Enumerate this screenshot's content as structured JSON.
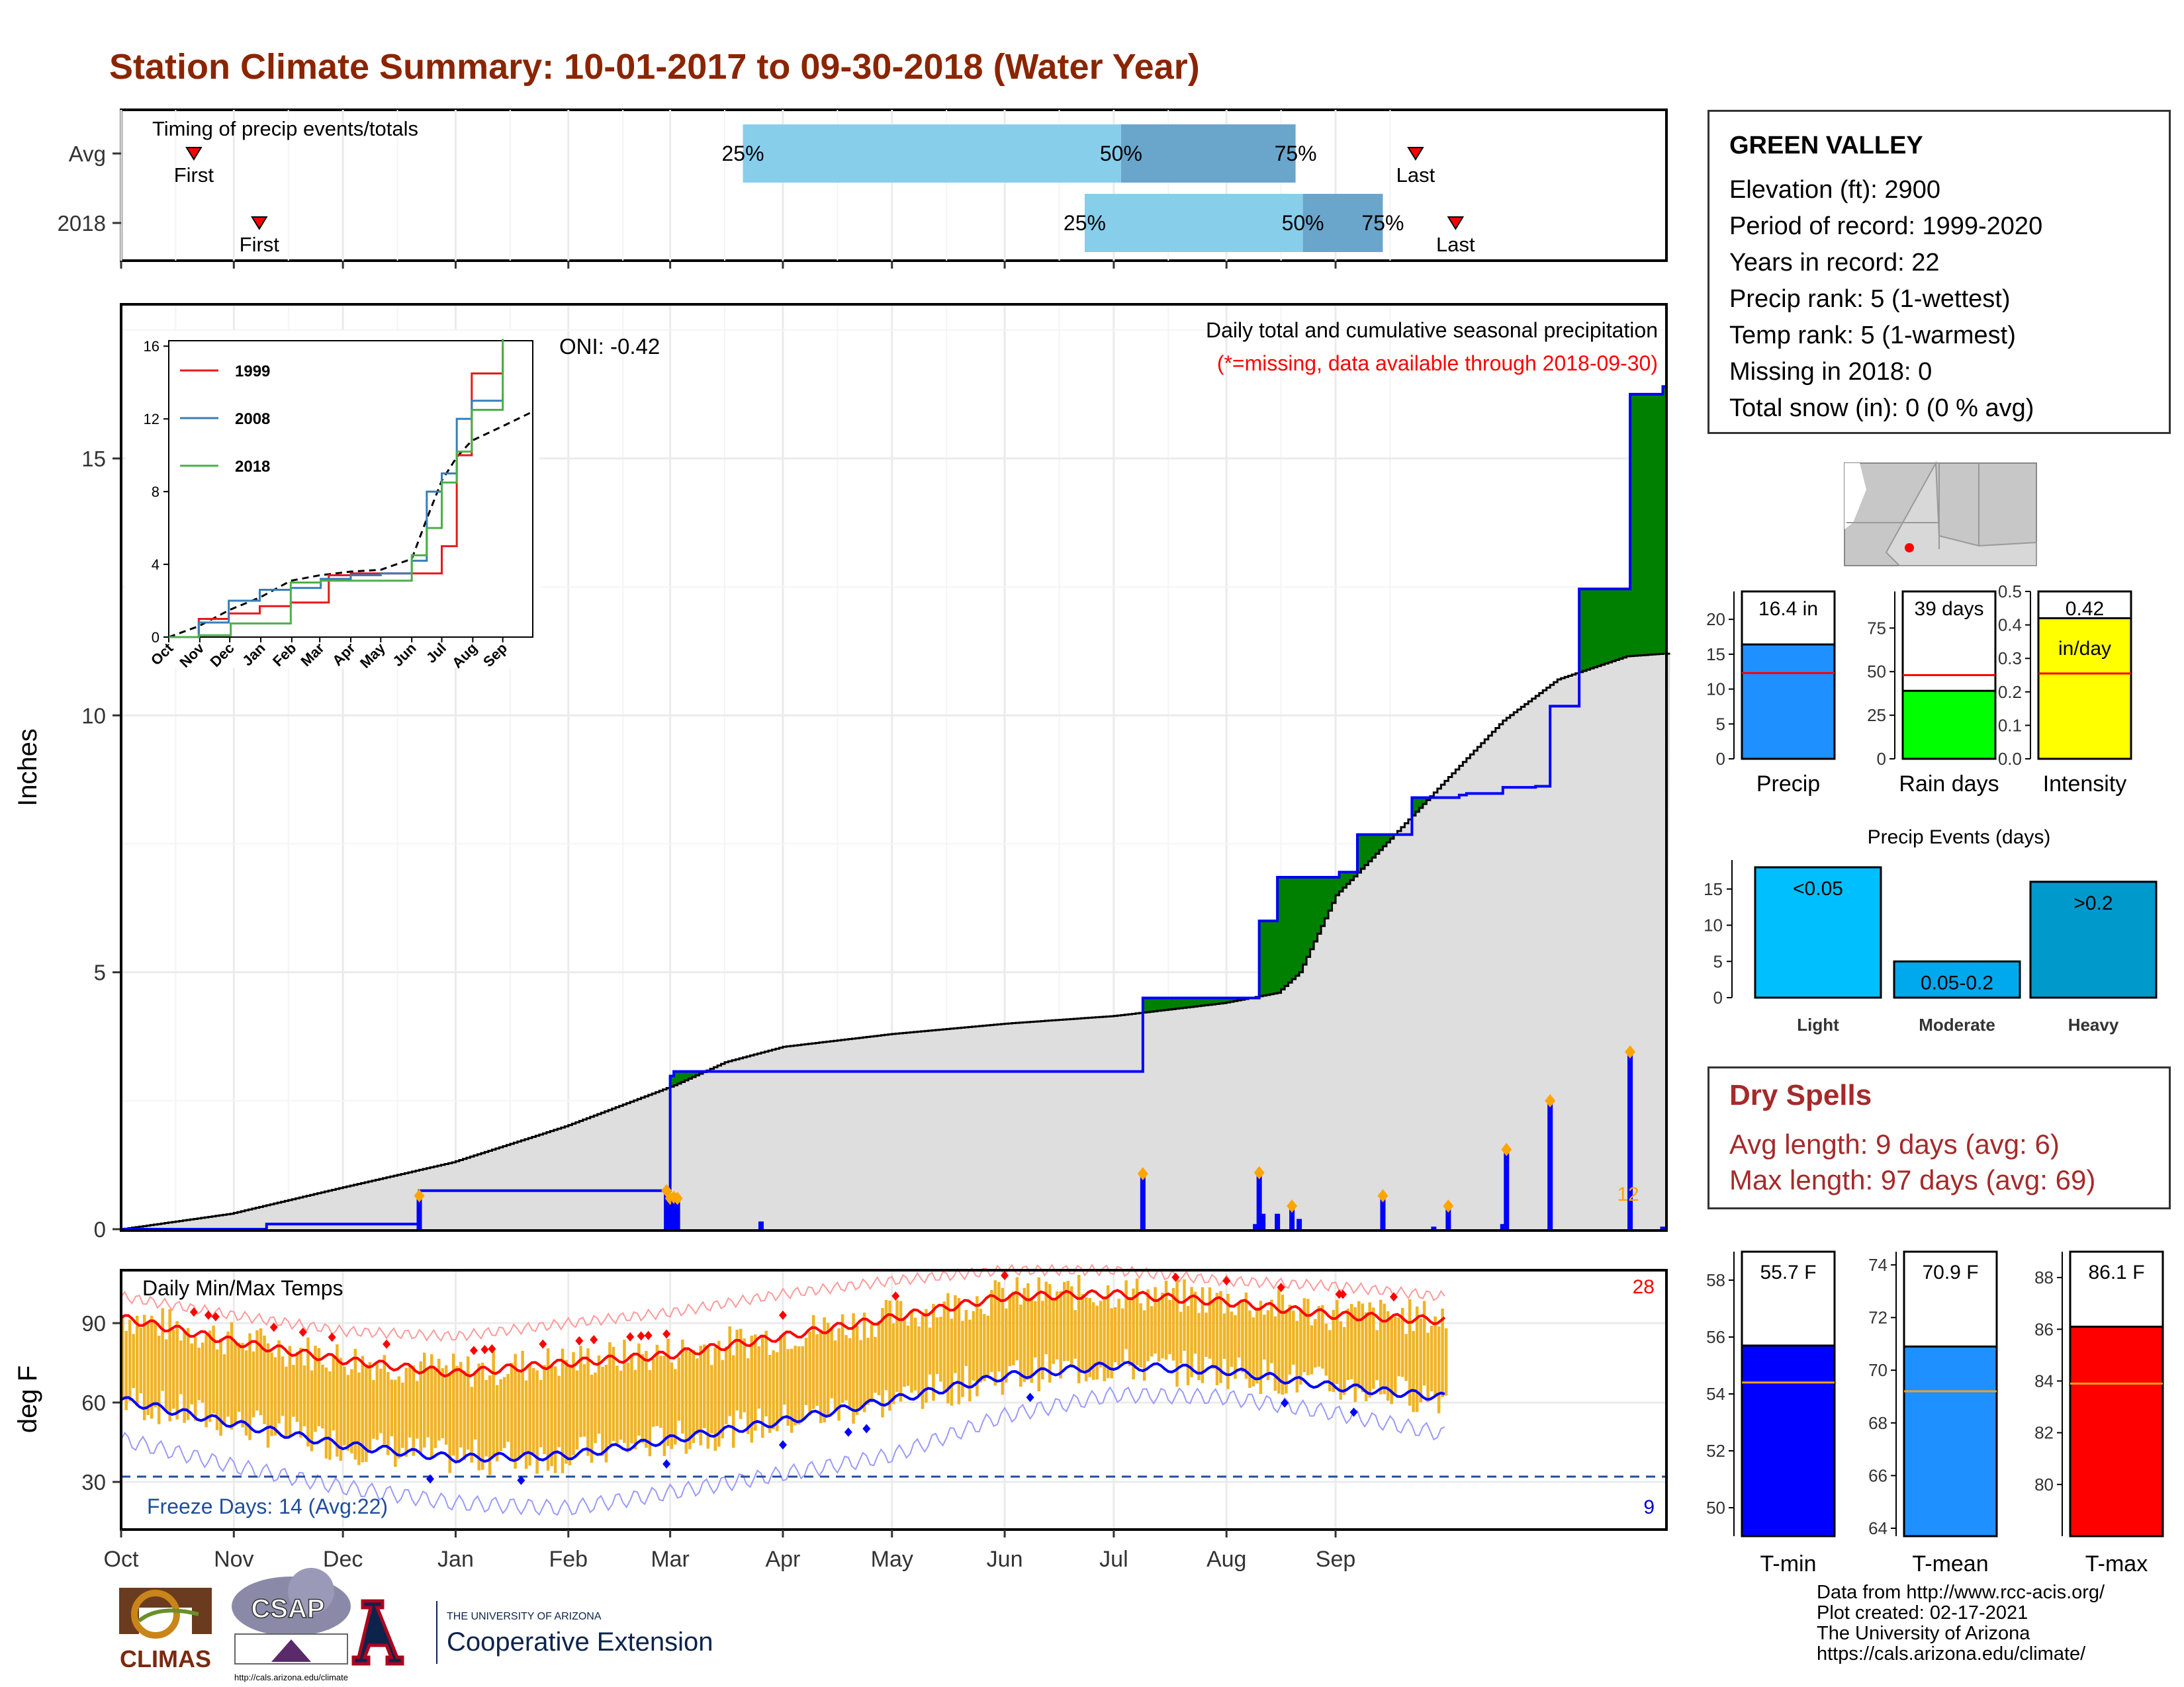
{
  "title": "Station Climate Summary: 10-01-2017 to 09-30-2018 (Water Year)",
  "months": [
    "Oct",
    "Nov",
    "Dec",
    "Jan",
    "Feb",
    "Mar",
    "Apr",
    "May",
    "Jun",
    "Jul",
    "Aug",
    "Sep"
  ],
  "timing": {
    "label": "Timing of precip events/totals",
    "rows": [
      {
        "name": "Avg",
        "first_label": "First",
        "first_day": 20,
        "last_label": "Last",
        "last_day": 356,
        "p25": 171,
        "p50": 275,
        "p75": 323,
        "p25_label": "25%",
        "p50_label": "50%",
        "p75_label": "75%"
      },
      {
        "name": "2018",
        "first_label": "First",
        "first_day": 38,
        "last_label": "Last",
        "last_day": 367,
        "p25": 265,
        "p50": 325,
        "p75": 347,
        "p25_label": "25%",
        "p50_label": "50%",
        "p75_label": "75%"
      }
    ]
  },
  "precip_panel": {
    "title": "Daily total and cumulative seasonal precipitation",
    "subtitle": "(*=missing, data available through 2018-09-30)",
    "oni": "ONI: -0.42",
    "ylabel": "Inches",
    "ylim": [
      0,
      18
    ],
    "yticks": [
      0,
      5,
      10,
      15
    ],
    "count_label": "12"
  },
  "inset": {
    "xticks": [
      "Oct",
      "Nov",
      "Dec",
      "Jan",
      "Feb",
      "Mar",
      "Apr",
      "May",
      "Jun",
      "Jul",
      "Aug",
      "Sep"
    ],
    "yticks": [
      0,
      4,
      8,
      12,
      16
    ],
    "series": [
      {
        "name": "1999",
        "color": "#e41a1c"
      },
      {
        "name": "2008",
        "color": "#377eb8"
      },
      {
        "name": "2018",
        "color": "#4daf4a"
      }
    ]
  },
  "temp_panel": {
    "title": "Daily Min/Max Temps",
    "ylabel": "deg F",
    "yticks": [
      30,
      60,
      90
    ],
    "ylim": [
      12,
      110
    ],
    "freeze_label": "Freeze Days: 14 (Avg:22)",
    "hot_count": "28",
    "cold_count": "9"
  },
  "station": {
    "name": "GREEN VALLEY",
    "rows": [
      "Elevation (ft): 2900",
      "Period of record: 1999-2020",
      "Years in record: 22",
      "Precip rank: 5 (1-wettest)",
      "Temp rank: 5 (1-warmest)",
      "Missing in 2018: 0",
      "Total snow (in): 0 (0 % avg)"
    ]
  },
  "summary_bars": [
    {
      "label": "Precip",
      "value_label": "16.4 in",
      "value": 16.4,
      "avg": 12.3,
      "ylim": [
        0,
        24
      ],
      "yticks": [
        0,
        5,
        10,
        15,
        20
      ],
      "color": "#1e90ff"
    },
    {
      "label": "Rain days",
      "value_label": "39 days",
      "value": 39,
      "avg": 48,
      "ylim": [
        0,
        96
      ],
      "yticks": [
        0,
        25,
        50,
        75
      ],
      "color": "#00ff00"
    },
    {
      "label": "Intensity",
      "value_label": "0.42",
      "value_label2": "in/day",
      "value": 0.42,
      "avg": 0.255,
      "ylim": [
        0,
        0.5
      ],
      "yticks": [
        "0.0",
        "0.1",
        "0.2",
        "0.3",
        "0.4",
        "0.5"
      ],
      "color": "#ffff00"
    }
  ],
  "precip_events": {
    "title": "Precip Events (days)",
    "ylim": [
      0,
      19
    ],
    "yticks": [
      0,
      5,
      10,
      15
    ],
    "bars": [
      {
        "label": "Light",
        "value_label": "<0.05",
        "value": 18,
        "color": "#00bfff"
      },
      {
        "label": "Moderate",
        "value_label": "0.05-0.2",
        "value": 5,
        "color": "#00a8ee"
      },
      {
        "label": "Heavy",
        "value_label": ">0.2",
        "value": 16,
        "color": "#0099cc"
      }
    ]
  },
  "dry_spells": {
    "title": "Dry Spells",
    "avg_length": "Avg length: 9 days (avg: 6)",
    "max_length": "Max length: 97 days (avg: 69)"
  },
  "temp_bars": [
    {
      "label": "T-min",
      "value_label": "55.7 F",
      "value": 55.7,
      "avg": 54.4,
      "ylim": [
        49,
        59
      ],
      "yticks": [
        50,
        52,
        54,
        56,
        58
      ],
      "color": "#0000ff"
    },
    {
      "label": "T-mean",
      "value_label": "70.9 F",
      "value": 70.9,
      "avg": 69.2,
      "ylim": [
        63.7,
        74.5
      ],
      "yticks": [
        64,
        66,
        68,
        70,
        72,
        74
      ],
      "color": "#1e90ff"
    },
    {
      "label": "T-max",
      "value_label": "86.1 F",
      "value": 86.1,
      "avg": 83.9,
      "ylim": [
        78,
        89
      ],
      "yticks": [
        80,
        82,
        84,
        86,
        88
      ],
      "color": "#ff0000"
    }
  ],
  "logos": {
    "climas": "CLIMAS",
    "csap": "CSAP",
    "csap_url": "http://cals.arizona.edu/climate",
    "ua_small": "THE UNIVERSITY OF ARIZONA",
    "ua_big": "Cooperative Extension"
  },
  "credits": [
    "Data from http://www.rcc-acis.org/",
    "Plot created: 02-17-2021",
    "The University of Arizona",
    "https://cals.arizona.edu/climate/"
  ],
  "chart_data": [
    {
      "type": "bar",
      "title": "Timing of precip events/totals",
      "categories": [
        "Avg",
        "2018"
      ],
      "series": [
        {
          "name": "25%",
          "values": [
            171,
            265
          ]
        },
        {
          "name": "50%",
          "values": [
            275,
            325
          ]
        },
        {
          "name": "75%",
          "values": [
            323,
            347
          ]
        }
      ]
    },
    {
      "type": "area",
      "title": "Daily total and cumulative seasonal precipitation",
      "ylabel": "Inches",
      "ylim": [
        0,
        18
      ],
      "x_months": [
        "Oct",
        "Nov",
        "Dec",
        "Jan",
        "Feb",
        "Mar",
        "Apr",
        "May",
        "Jun",
        "Jul",
        "Aug",
        "Sep"
      ],
      "cumulative_2018": [
        [
          0,
          0
        ],
        [
          40,
          0.1
        ],
        [
          81,
          0.1
        ],
        [
          82,
          0.75
        ],
        [
          149,
          0.75
        ],
        [
          151,
          2.98
        ],
        [
          152,
          3.07
        ],
        [
          180,
          3.07
        ],
        [
          181,
          3.07
        ],
        [
          182,
          3.07
        ],
        [
          280,
          3.07
        ],
        [
          281,
          4.5
        ],
        [
          300,
          4.5
        ],
        [
          303,
          4.5
        ],
        [
          312,
          4.5
        ],
        [
          313,
          6.0
        ],
        [
          314,
          6.0
        ],
        [
          317,
          6.0
        ],
        [
          318,
          6.85
        ],
        [
          330,
          6.85
        ],
        [
          331,
          6.85
        ],
        [
          334,
          6.85
        ],
        [
          335,
          6.95
        ],
        [
          339,
          6.95
        ],
        [
          340,
          7.68
        ],
        [
          350,
          7.68
        ],
        [
          351,
          7.68
        ],
        [
          355,
          8.4
        ],
        [
          368,
          8.45
        ],
        [
          369,
          8.45
        ],
        [
          370,
          8.48
        ],
        [
          379,
          8.48
        ],
        [
          380,
          8.6
        ],
        [
          388,
          8.6
        ],
        [
          389,
          8.62
        ],
        [
          390,
          8.62
        ],
        [
          393,
          10.18
        ],
        [
          400,
          10.18
        ],
        [
          401,
          12.46
        ],
        [
          414,
          12.46
        ],
        [
          415,
          16.25
        ],
        [
          423,
          16.25
        ],
        [
          424,
          16.4
        ]
      ],
      "cumulative_avg": [
        [
          0,
          0
        ],
        [
          30,
          0.3
        ],
        [
          60,
          0.8
        ],
        [
          91,
          1.3
        ],
        [
          122,
          2.0
        ],
        [
          152,
          2.8
        ],
        [
          166,
          3.25
        ],
        [
          182,
          3.55
        ],
        [
          212,
          3.8
        ],
        [
          243,
          4.0
        ],
        [
          273,
          4.15
        ],
        [
          303,
          4.4
        ],
        [
          318,
          4.6
        ],
        [
          324,
          5.0
        ],
        [
          334,
          6.5
        ],
        [
          349,
          7.6
        ],
        [
          365,
          8.8
        ],
        [
          380,
          9.9
        ],
        [
          395,
          10.7
        ],
        [
          414,
          11.15
        ],
        [
          424,
          11.2
        ]
      ],
      "daily_2018": [
        [
          82,
          0.65
        ],
        [
          150,
          0.75
        ],
        [
          151,
          0.6
        ],
        [
          152,
          0.62
        ],
        [
          153,
          0.6
        ],
        [
          176,
          0.15
        ],
        [
          281,
          1.08
        ],
        [
          312,
          0.1
        ],
        [
          313,
          1.1
        ],
        [
          314,
          0.3
        ],
        [
          318,
          0.3
        ],
        [
          322,
          0.45
        ],
        [
          324,
          0.2
        ],
        [
          347,
          0.65
        ],
        [
          361,
          0.05
        ],
        [
          365,
          0.45
        ],
        [
          380,
          0.1
        ],
        [
          381,
          1.55
        ],
        [
          393,
          2.5
        ],
        [
          415,
          3.45
        ],
        [
          424,
          0.05
        ]
      ],
      "extra_series": [
        {
          "name": "1999",
          "values": [
            [
              0,
              0
            ],
            [
              30,
              1
            ],
            [
              60,
              1.3
            ],
            [
              91,
              1.7
            ],
            [
              122,
              1.9
            ],
            [
              152,
              1.9
            ],
            [
              160,
              3.4
            ],
            [
              182,
              3.5
            ],
            [
              212,
              3.5
            ],
            [
              243,
              3.5
            ],
            [
              273,
              5
            ],
            [
              288,
              10
            ],
            [
              303,
              14.5
            ],
            [
              334,
              16
            ]
          ]
        },
        {
          "name": "2008",
          "values": [
            [
              0,
              0
            ],
            [
              30,
              0.8
            ],
            [
              60,
              2
            ],
            [
              91,
              2.6
            ],
            [
              122,
              2.7
            ],
            [
              152,
              3.2
            ],
            [
              182,
              3.4
            ],
            [
              212,
              3.5
            ],
            [
              243,
              4.2
            ],
            [
              258,
              8
            ],
            [
              273,
              9
            ],
            [
              288,
              12
            ],
            [
              303,
              13
            ],
            [
              334,
              13.4
            ]
          ]
        },
        {
          "name": "2018",
          "values": [
            [
              0,
              0
            ],
            [
              30,
              0.1
            ],
            [
              61,
              0.1
            ],
            [
              62,
              0.75
            ],
            [
              92,
              0.75
            ],
            [
              122,
              3.0
            ],
            [
              152,
              3.1
            ],
            [
              182,
              3.1
            ],
            [
              212,
              3.1
            ],
            [
              243,
              4.5
            ],
            [
              258,
              6
            ],
            [
              273,
              8.5
            ],
            [
              288,
              10.2
            ],
            [
              303,
              12.5
            ],
            [
              334,
              16.4
            ]
          ]
        }
      ]
    },
    {
      "type": "line",
      "title": "Daily Min/Max Temps",
      "ylabel": "deg F",
      "x_months": [
        "Oct",
        "Nov",
        "Dec",
        "Jan",
        "Feb",
        "Mar",
        "Apr",
        "May",
        "Jun",
        "Jul",
        "Aug",
        "Sep"
      ],
      "series": [
        {
          "name": "avg max",
          "values": [
            [
              0,
              92
            ],
            [
              31,
              83
            ],
            [
              61,
              76
            ],
            [
              92,
              71
            ],
            [
              123,
              75
            ],
            [
              151,
              78
            ],
            [
              182,
              85
            ],
            [
              212,
              92
            ],
            [
              243,
              100
            ],
            [
              273,
              101
            ],
            [
              304,
              98
            ],
            [
              334,
              93
            ],
            [
              364,
              91
            ]
          ]
        },
        {
          "name": "avg min",
          "values": [
            [
              0,
              61
            ],
            [
              31,
              52
            ],
            [
              61,
              44
            ],
            [
              92,
              39
            ],
            [
              123,
              40
            ],
            [
              151,
              46
            ],
            [
              182,
              53
            ],
            [
              212,
              61
            ],
            [
              243,
              70
            ],
            [
              273,
              74
            ],
            [
              304,
              72
            ],
            [
              334,
              66
            ],
            [
              364,
              62
            ]
          ]
        },
        {
          "name": "record max",
          "values": [
            [
              0,
              100
            ],
            [
              31,
              93
            ],
            [
              61,
              87
            ],
            [
              92,
              85
            ],
            [
              123,
              90
            ],
            [
              151,
              94
            ],
            [
              182,
              101
            ],
            [
              212,
              106
            ],
            [
              243,
              110
            ],
            [
              273,
              110
            ],
            [
              304,
              106
            ],
            [
              334,
              104
            ],
            [
              364,
              100
            ]
          ]
        },
        {
          "name": "record min",
          "values": [
            [
              0,
              46
            ],
            [
              31,
              36
            ],
            [
              61,
              28
            ],
            [
              92,
              22
            ],
            [
              123,
              20
            ],
            [
              151,
              26
            ],
            [
              182,
              33
            ],
            [
              212,
              40
            ],
            [
              243,
              55
            ],
            [
              273,
              63
            ],
            [
              304,
              62
            ],
            [
              334,
              56
            ],
            [
              364,
              48
            ]
          ]
        }
      ]
    },
    {
      "type": "bar",
      "title": "Precip Events (days)",
      "categories": [
        "Light",
        "Moderate",
        "Heavy"
      ],
      "values": [
        18,
        5,
        16
      ]
    }
  ]
}
